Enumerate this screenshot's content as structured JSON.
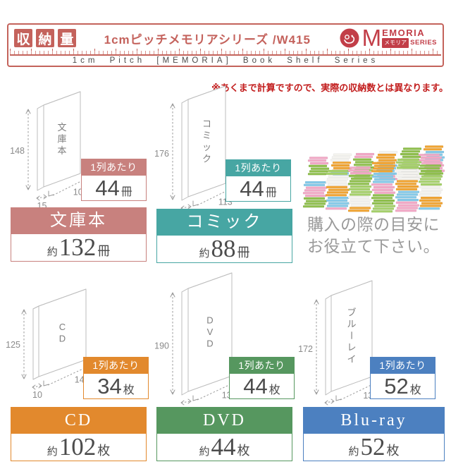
{
  "banner": {
    "capacity_chars": [
      "収",
      "納",
      "量"
    ],
    "series_title": "1cmピッチメモリアシリーズ /W415",
    "subtitle": "1cm Pitch [MEMORIA] Book Shelf Series",
    "logo": {
      "initial": "M",
      "rest": "EMORIA",
      "jp": "メモリア",
      "series": "SERIES"
    },
    "accent_color": "#c4635b"
  },
  "note": {
    "text": "※あくまで計算ですので、実際の収納数とは異なります。",
    "color": "#c21c1c"
  },
  "guide": {
    "line1": "購入の際の目安に",
    "line2": "お役立て下さい。"
  },
  "items": [
    {
      "id": "bunkobon",
      "name": "文庫本",
      "book_label": "文庫本",
      "color": "#c8817e",
      "dim_height": "148",
      "dim_depth": "105",
      "dim_thickness": "15",
      "per_row_label": "1列あたり",
      "per_row_value": "44",
      "per_row_unit": "冊",
      "total_prefix": "約",
      "total_value": "132",
      "total_unit": "冊"
    },
    {
      "id": "comic",
      "name": "コミック",
      "book_label": "コミック",
      "color": "#47a6a3",
      "dim_height": "176",
      "dim_depth": "113",
      "dim_thickness": "15",
      "per_row_label": "1列あたり",
      "per_row_value": "44",
      "per_row_unit": "冊",
      "total_prefix": "約",
      "total_value": "88",
      "total_unit": "冊"
    },
    {
      "id": "cd",
      "name": "CD",
      "book_label": "CD",
      "color": "#e2892d",
      "dim_height": "125",
      "dim_depth": "142",
      "dim_thickness": "10",
      "per_row_label": "1列あたり",
      "per_row_value": "34",
      "per_row_unit": "枚",
      "total_prefix": "約",
      "total_value": "102",
      "total_unit": "枚"
    },
    {
      "id": "dvd",
      "name": "DVD",
      "book_label": "DVD",
      "color": "#56975f",
      "dim_height": "190",
      "dim_depth": "135",
      "dim_thickness": "15",
      "per_row_label": "1列あたり",
      "per_row_value": "44",
      "per_row_unit": "枚",
      "total_prefix": "約",
      "total_value": "44",
      "total_unit": "枚"
    },
    {
      "id": "bluray",
      "name": "Blu-ray",
      "book_label": "ブルーレイ",
      "color": "#4c80c0",
      "dim_height": "172",
      "dim_depth": "135",
      "dim_thickness": "13",
      "per_row_label": "1列あたり",
      "per_row_value": "52",
      "per_row_unit": "枚",
      "total_prefix": "約",
      "total_value": "52",
      "total_unit": "枚"
    }
  ],
  "illustration_palette": [
    "#8fbf4d",
    "#f2a8c6",
    "#85c9e8",
    "#f0a433",
    "#f4f3ef",
    "#a5d06a"
  ]
}
